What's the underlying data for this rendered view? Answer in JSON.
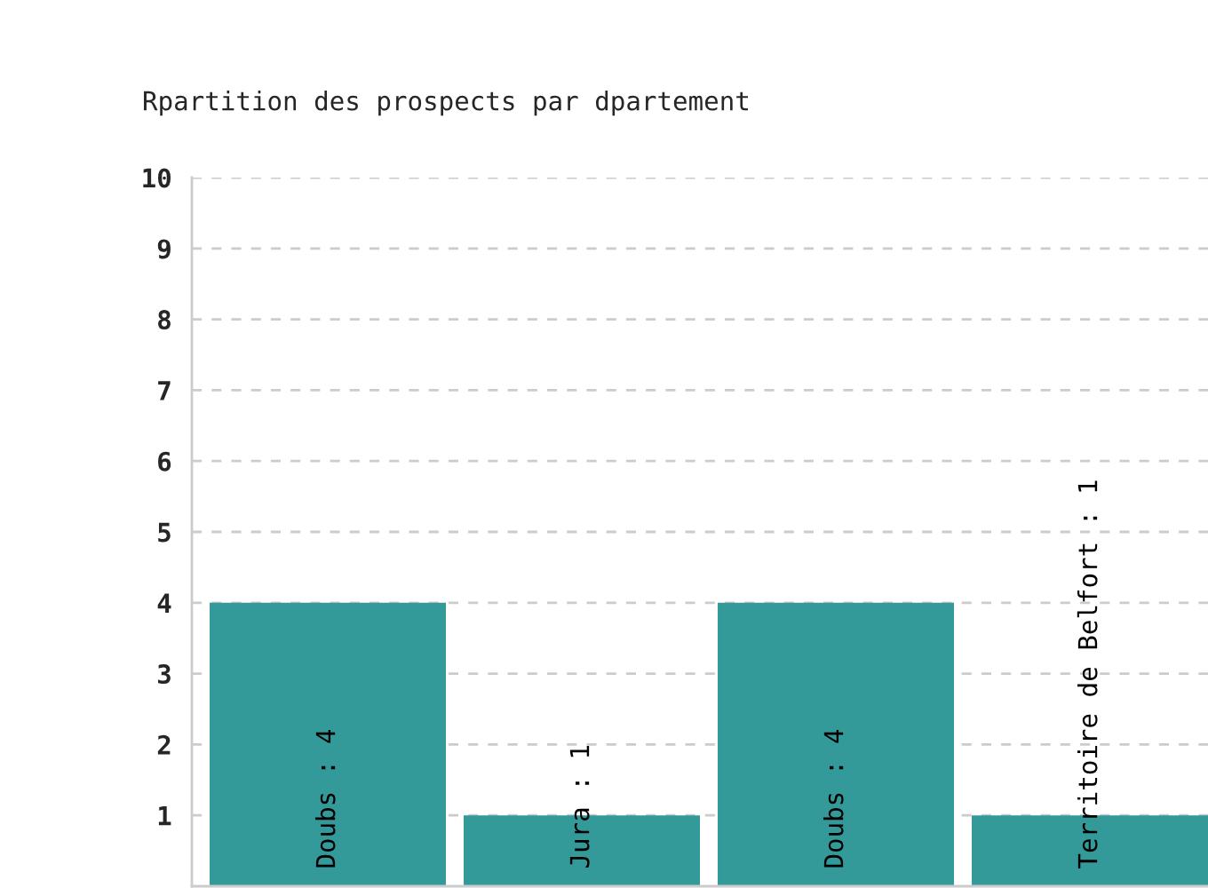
{
  "chart_data": {
    "type": "bar",
    "title": "Rpartition des prospects par dpartement",
    "categories": [
      null,
      null,
      null,
      null
    ],
    "values": [
      4,
      1,
      4,
      1
    ],
    "value_labels": [
      "Doubs : 4",
      "Jura : 1",
      "Doubs : 4",
      "Territoire de Belfort : 1"
    ],
    "color": "#339999",
    "ylim": [
      0,
      10
    ],
    "yticks": [
      1,
      2,
      3,
      4,
      5,
      6,
      7,
      8,
      9,
      10
    ],
    "grid": "y",
    "tick_labels": "y",
    "legend": false
  }
}
